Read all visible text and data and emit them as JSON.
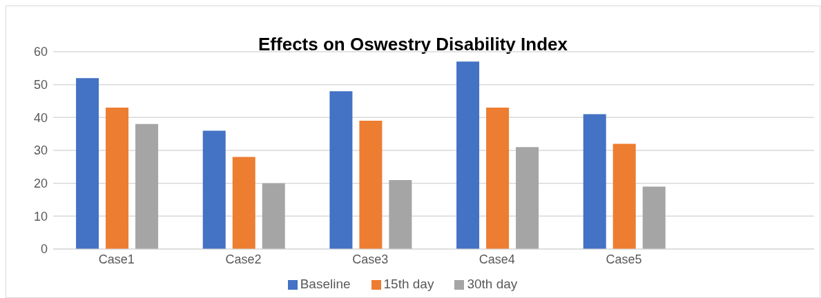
{
  "chart_data": {
    "type": "bar",
    "title": "Effects on Oswestry Disability Index",
    "categories": [
      "Case1",
      "Case2",
      "Case3",
      "Case4",
      "Case5",
      null
    ],
    "series": [
      {
        "name": "Baseline",
        "color": "#4472c4",
        "values": [
          52,
          36,
          48,
          57,
          41,
          null
        ]
      },
      {
        "name": "15th day",
        "color": "#ed7d31",
        "values": [
          43,
          28,
          39,
          43,
          32,
          null
        ]
      },
      {
        "name": "30th day",
        "color": "#a5a5a5",
        "values": [
          38,
          20,
          21,
          31,
          19,
          null
        ]
      }
    ],
    "ylim": [
      0,
      60
    ],
    "yticks": [
      0,
      10,
      20,
      30,
      40,
      50,
      60
    ],
    "grid": "y",
    "legend": "bottom"
  }
}
